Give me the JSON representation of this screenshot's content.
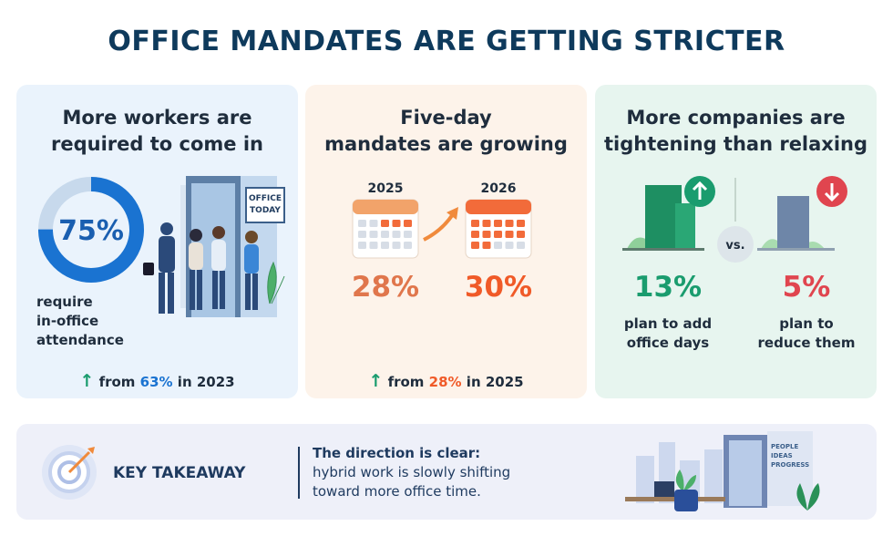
{
  "title": "OFFICE MANDATES ARE GETTING STRICTER",
  "cards": [
    {
      "heading": [
        "More workers are",
        "required to come in"
      ],
      "donut": {
        "value": 75,
        "label": "75%"
      },
      "sign": [
        "OFFICE",
        "TODAY"
      ],
      "caption": [
        "require",
        "in-office",
        "attendance"
      ],
      "change": [
        "from",
        "63%",
        "in 2023"
      ]
    },
    {
      "heading": [
        "Five-day",
        "mandates are growing"
      ],
      "years": [
        "2025",
        "2026"
      ],
      "stats": [
        "28%",
        "30%"
      ],
      "change": [
        "from",
        "28%",
        "in 2025"
      ]
    },
    {
      "heading": [
        "More companies are",
        "tightening than relaxing"
      ],
      "versus": "vs.",
      "stats": [
        "13%",
        "5%"
      ],
      "captions": [
        [
          "plan to add",
          "office days"
        ],
        [
          "plan to",
          "reduce them"
        ]
      ]
    }
  ],
  "takeaway": {
    "label": "KEY TAKEAWAY",
    "headline": "The direction is clear:",
    "body": [
      "hybrid work is slowly shifting",
      "toward more office time."
    ],
    "sign": [
      "PEOPLE",
      "IDEAS",
      "PROGRESS"
    ]
  }
}
